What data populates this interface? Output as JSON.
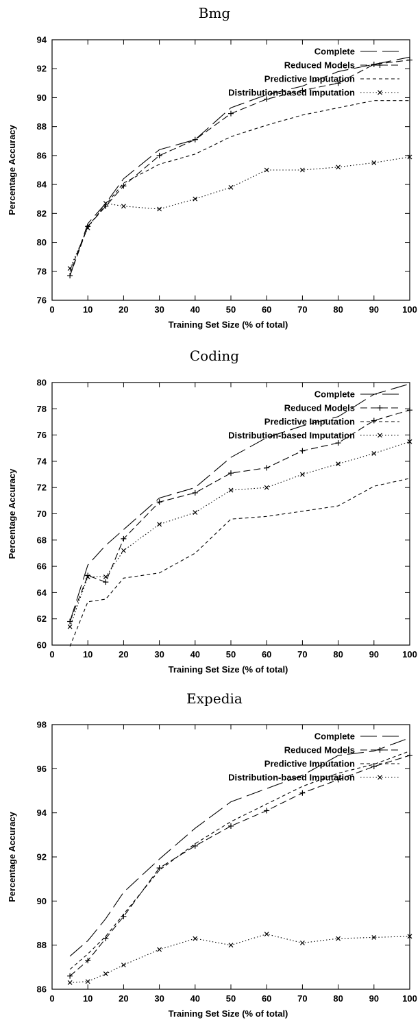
{
  "chart_data": [
    {
      "type": "line",
      "title": "Bmg",
      "xlabel": "Training Set Size (% of total)",
      "ylabel": "Percentage Accuracy",
      "xlim": [
        0,
        100
      ],
      "ylim": [
        76,
        94
      ],
      "xticks": [
        0,
        10,
        20,
        30,
        40,
        50,
        60,
        70,
        80,
        90,
        100
      ],
      "yticks": [
        76,
        78,
        80,
        82,
        84,
        86,
        88,
        90,
        92,
        94
      ],
      "grid": false,
      "legend_position": "top-right",
      "x": [
        5,
        10,
        15,
        20,
        30,
        40,
        50,
        60,
        70,
        80,
        90,
        100
      ],
      "series": [
        {
          "name": "Complete",
          "values": [
            77.7,
            81.3,
            82.7,
            84.4,
            86.4,
            87.1,
            89.3,
            90.2,
            90.8,
            91.8,
            92.3,
            92.8
          ]
        },
        {
          "name": "Reduced Models",
          "values": [
            77.7,
            81.1,
            82.5,
            83.9,
            86.0,
            87.1,
            88.9,
            89.9,
            90.5,
            91.0,
            92.3,
            92.6
          ]
        },
        {
          "name": "Predictive Imputation",
          "values": [
            78.0,
            81.1,
            82.6,
            84.1,
            85.4,
            86.1,
            87.3,
            88.1,
            88.8,
            89.3,
            89.8,
            89.8
          ]
        },
        {
          "name": "Distribution-based Imputation",
          "values": [
            78.2,
            81.0,
            82.7,
            82.5,
            82.3,
            83.0,
            83.8,
            85.0,
            85.0,
            85.2,
            85.5,
            85.9
          ]
        }
      ]
    },
    {
      "type": "line",
      "title": "Coding",
      "xlabel": "Training Set Size (% of total)",
      "ylabel": "Percentage Accuracy",
      "xlim": [
        0,
        100
      ],
      "ylim": [
        60,
        80
      ],
      "xticks": [
        0,
        10,
        20,
        30,
        40,
        50,
        60,
        70,
        80,
        90,
        100
      ],
      "yticks": [
        60,
        62,
        64,
        66,
        68,
        70,
        72,
        74,
        76,
        78,
        80
      ],
      "grid": false,
      "legend_position": "top-right",
      "x": [
        5,
        10,
        15,
        20,
        30,
        40,
        50,
        60,
        70,
        80,
        90,
        100
      ],
      "series": [
        {
          "name": "Complete",
          "values": [
            61.8,
            66.1,
            67.6,
            68.8,
            71.2,
            72.0,
            74.3,
            75.8,
            76.7,
            77.4,
            79.1,
            79.9
          ]
        },
        {
          "name": "Reduced Models",
          "values": [
            61.8,
            65.3,
            64.8,
            68.1,
            70.9,
            71.6,
            73.1,
            73.5,
            74.8,
            75.4,
            77.1,
            77.9
          ]
        },
        {
          "name": "Predictive Imputation",
          "values": [
            59.9,
            63.3,
            63.5,
            65.1,
            65.5,
            67.0,
            69.6,
            69.8,
            70.2,
            70.6,
            72.1,
            72.7
          ]
        },
        {
          "name": "Distribution-based Imputation",
          "values": [
            61.4,
            65.2,
            65.2,
            67.2,
            69.2,
            70.1,
            71.8,
            72.0,
            73.0,
            73.8,
            74.6,
            75.5
          ]
        }
      ]
    },
    {
      "type": "line",
      "title": "Expedia",
      "xlabel": "Training Set Size (% of total)",
      "ylabel": "Percentage Accuracy",
      "xlim": [
        0,
        100
      ],
      "ylim": [
        86,
        98
      ],
      "xticks": [
        0,
        10,
        20,
        30,
        40,
        50,
        60,
        70,
        80,
        90,
        100
      ],
      "yticks": [
        86,
        88,
        90,
        92,
        94,
        96,
        98
      ],
      "grid": false,
      "legend_position": "top-right",
      "x": [
        5,
        10,
        15,
        20,
        30,
        40,
        50,
        60,
        70,
        80,
        90,
        100
      ],
      "series": [
        {
          "name": "Complete",
          "values": [
            87.5,
            88.2,
            89.2,
            90.4,
            91.9,
            93.3,
            94.5,
            95.1,
            95.7,
            96.6,
            96.8,
            97.4
          ]
        },
        {
          "name": "Reduced Models",
          "values": [
            86.6,
            87.3,
            88.3,
            89.3,
            91.5,
            92.5,
            93.4,
            94.1,
            94.9,
            95.5,
            96.1,
            96.6
          ]
        },
        {
          "name": "Predictive Imputation",
          "values": [
            86.9,
            87.6,
            88.4,
            89.4,
            91.4,
            92.6,
            93.6,
            94.4,
            95.2,
            95.8,
            96.2,
            96.8
          ]
        },
        {
          "name": "Distribution-based Imputation",
          "values": [
            86.3,
            86.35,
            86.7,
            87.1,
            87.8,
            88.3,
            88.0,
            88.5,
            88.1,
            88.3,
            88.35,
            88.4
          ]
        }
      ]
    }
  ]
}
